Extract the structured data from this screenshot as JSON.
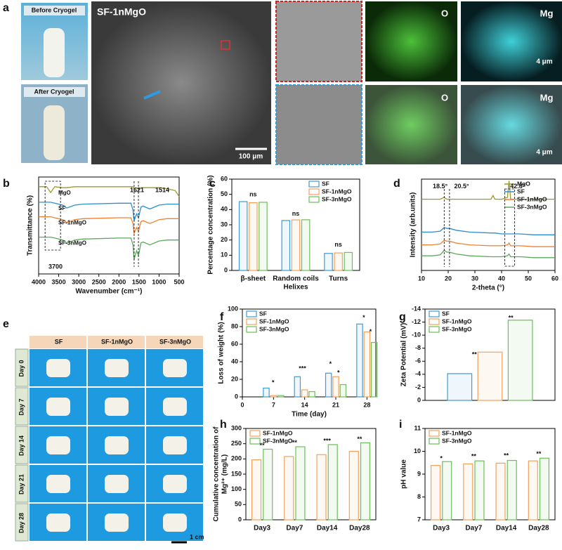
{
  "panel_a": {
    "label": "a",
    "photos": [
      "Before Cryogel",
      "After Cryogel"
    ],
    "sem": {
      "title": "SF-1nMgO",
      "scale": "100 μm"
    },
    "maps": [
      "O",
      "Mg",
      "O",
      "Mg"
    ],
    "map_scales": [
      "4 μm",
      "4 μm"
    ]
  },
  "panel_e": {
    "label": "e",
    "columns": [
      "SF",
      "SF-1nMgO",
      "SF-3nMgO"
    ],
    "rows": [
      "Day 0",
      "Day 7",
      "Day 14",
      "Day 21",
      "Day 28"
    ],
    "scale": "1 cm"
  },
  "chart_data": [
    {
      "type": "line",
      "label": "b",
      "xlabel": "Wavenumber (cm⁻¹)",
      "ylabel": [
        "Transmittance (%)"
      ],
      "legend": "inline",
      "x": [
        4000,
        3800,
        3700,
        3600,
        3400,
        3300,
        3100,
        2900,
        2000,
        1700,
        1650,
        1621,
        1560,
        1514,
        1450,
        1400,
        1230,
        1000,
        800,
        600,
        500
      ],
      "xlim": [
        4000,
        500
      ],
      "xticks": [
        4000,
        3500,
        3000,
        2500,
        2000,
        1500,
        1000,
        500
      ],
      "ylim": [
        0,
        100
      ],
      "series": [
        {
          "name": "MgO",
          "color": "#9a9a2a",
          "values": [
            90,
            90,
            84,
            90,
            89,
            89,
            90,
            90,
            90,
            90,
            90,
            88,
            89,
            88,
            89,
            89,
            89,
            89,
            88,
            86,
            80
          ]
        },
        {
          "name": "SF",
          "color": "#2a8fd0",
          "values": [
            74,
            74,
            74,
            73,
            71,
            68,
            71,
            72,
            73,
            73,
            66,
            55,
            62,
            58,
            69,
            70,
            67,
            71,
            72,
            72,
            72
          ]
        },
        {
          "name": "SF-1nMgO",
          "color": "#f08030",
          "values": [
            59,
            59,
            59,
            58,
            56,
            53,
            56,
            57,
            58,
            58,
            52,
            42,
            48,
            44,
            54,
            55,
            52,
            56,
            57,
            57,
            57
          ]
        },
        {
          "name": "SF-3nMgO",
          "color": "#5aaa5a",
          "values": [
            38,
            38,
            38,
            37,
            35,
            32,
            35,
            36,
            37,
            37,
            30,
            15,
            24,
            19,
            32,
            33,
            30,
            34,
            35,
            35,
            35
          ]
        }
      ],
      "annotations": [
        "1621",
        "1514",
        "3700"
      ]
    },
    {
      "type": "bar",
      "label": "c",
      "ylabel": [
        "Percentage concentration (%)"
      ],
      "xlabel": "Helixes",
      "legend": "upper right",
      "categories": [
        "β-sheet",
        "Random coils",
        "Turns"
      ],
      "ylim": [
        0,
        60
      ],
      "yticks": [
        0,
        10,
        20,
        30,
        40,
        50,
        60
      ],
      "series": [
        {
          "name": "SF",
          "color": "#3d9bd6",
          "values": [
            45.2,
            32.8,
            11.2
          ]
        },
        {
          "name": "SF-1nMgO",
          "color": "#f5a05a",
          "values": [
            44.5,
            33.2,
            11.5
          ]
        },
        {
          "name": "SF-3nMgO",
          "color": "#6cbf5a",
          "values": [
            44.8,
            33.3,
            11.8
          ]
        }
      ],
      "annotations": [
        "ns",
        "ns",
        "ns"
      ]
    },
    {
      "type": "line",
      "label": "d",
      "xlabel": "2-theta (°)",
      "ylabel": [
        "Intensity (arb.units)"
      ],
      "legend": "upper right",
      "x": [
        10,
        14,
        17,
        18.5,
        19.5,
        20.5,
        23,
        28,
        36,
        36.8,
        37.5,
        40,
        42.2,
        42.8,
        43.4,
        47,
        52,
        60
      ],
      "xlim": [
        10,
        60
      ],
      "xticks": [
        10,
        20,
        30,
        40,
        50,
        60
      ],
      "ylim": [
        0,
        100
      ],
      "series": [
        {
          "name": "MgO",
          "color": "#9a9a2a",
          "values": [
            78,
            78,
            78,
            80,
            78,
            78,
            78,
            78,
            78,
            82,
            78,
            78,
            80,
            98,
            78,
            78,
            78,
            78
          ]
        },
        {
          "name": "SF",
          "color": "#2a8fd0",
          "values": [
            42,
            42,
            43,
            47,
            46,
            46,
            44,
            42,
            41,
            41,
            41,
            40,
            40,
            40,
            40,
            40,
            39,
            39
          ]
        },
        {
          "name": "SF-1nMgO",
          "color": "#f08030",
          "values": [
            28,
            28,
            29,
            33,
            32,
            32,
            30,
            28,
            27,
            27,
            27,
            27,
            28,
            30,
            27,
            27,
            26,
            26
          ]
        },
        {
          "name": "SF-3nMgO",
          "color": "#5aaa5a",
          "values": [
            16,
            16,
            17,
            22,
            20,
            20,
            18,
            16,
            15,
            15,
            15,
            15,
            16,
            18,
            15,
            15,
            14,
            14
          ]
        }
      ],
      "annotations": [
        "18.5°",
        "20.5°",
        "42.8°"
      ]
    },
    {
      "type": "bar",
      "label": "f",
      "xlabel": "Time (day)",
      "ylabel": [
        "Loss of weight (%)"
      ],
      "legend": "upper left",
      "x": [
        7,
        14,
        21,
        28
      ],
      "xlim": [
        0,
        30
      ],
      "xticks": [
        0,
        7,
        14,
        21,
        28
      ],
      "ylim": [
        0,
        100
      ],
      "yticks": [
        0,
        20,
        40,
        60,
        80,
        100
      ],
      "series": [
        {
          "name": "SF",
          "color": "#3d9bd6",
          "values": [
            10,
            23,
            27,
            83
          ]
        },
        {
          "name": "SF-1nMgO",
          "color": "#f5a05a",
          "values": [
            1.5,
            8,
            23,
            74
          ]
        },
        {
          "name": "SF-3nMgO",
          "color": "#6cbf5a",
          "values": [
            1.5,
            6,
            14,
            62
          ]
        }
      ],
      "annotations": [
        "*",
        "***",
        "*",
        "*",
        "*",
        "*"
      ]
    },
    {
      "type": "bar",
      "label": "g",
      "ylabel": [
        "Zeta Potential (mV)"
      ],
      "legend": "upper left",
      "categories": [
        null
      ],
      "ylim": [
        0,
        -14
      ],
      "yticks": [
        0,
        -2,
        -4,
        -6,
        -8,
        -10,
        -12,
        -14
      ],
      "series": [
        {
          "name": "SF",
          "color": "#3d9bd6",
          "values": [
            -4.1
          ]
        },
        {
          "name": "SF-1nMgO",
          "color": "#f5a05a",
          "values": [
            -7.4
          ]
        },
        {
          "name": "SF-3nMgO",
          "color": "#6cbf5a",
          "values": [
            -12.3
          ]
        }
      ],
      "annotations": [
        "**",
        "**"
      ]
    },
    {
      "type": "bar",
      "label": "h",
      "ylabel": [
        "Cumulative concentration of",
        "Mg²⁺ (mg/L)"
      ],
      "legend": "upper left",
      "categories": [
        "Day3",
        "Day7",
        "Day14",
        "Day28"
      ],
      "ylim": [
        0,
        300
      ],
      "yticks": [
        0,
        50,
        100,
        150,
        200,
        250,
        300
      ],
      "series": [
        {
          "name": "SF-1nMgO",
          "color": "#f5a05a",
          "values": [
            197,
            208,
            214,
            225
          ]
        },
        {
          "name": "SF-3nMgO",
          "color": "#6cbf5a",
          "values": [
            232,
            240,
            247,
            253
          ]
        }
      ],
      "annotations": [
        "**",
        "**",
        "***",
        "**"
      ]
    },
    {
      "type": "bar",
      "label": "i",
      "ylabel": [
        "pH value"
      ],
      "legend": "upper left",
      "categories": [
        "Day3",
        "Day7",
        "Day14",
        "Day28"
      ],
      "ylim": [
        7,
        11
      ],
      "yticks": [
        7,
        8,
        9,
        10,
        11
      ],
      "series": [
        {
          "name": "SF-1nMgO",
          "color": "#f5a05a",
          "values": [
            9.38,
            9.45,
            9.48,
            9.58
          ]
        },
        {
          "name": "SF-3nMgO",
          "color": "#6cbf5a",
          "values": [
            9.55,
            9.58,
            9.6,
            9.7
          ]
        }
      ],
      "annotations": [
        "*",
        "**",
        "**",
        "**"
      ]
    }
  ]
}
